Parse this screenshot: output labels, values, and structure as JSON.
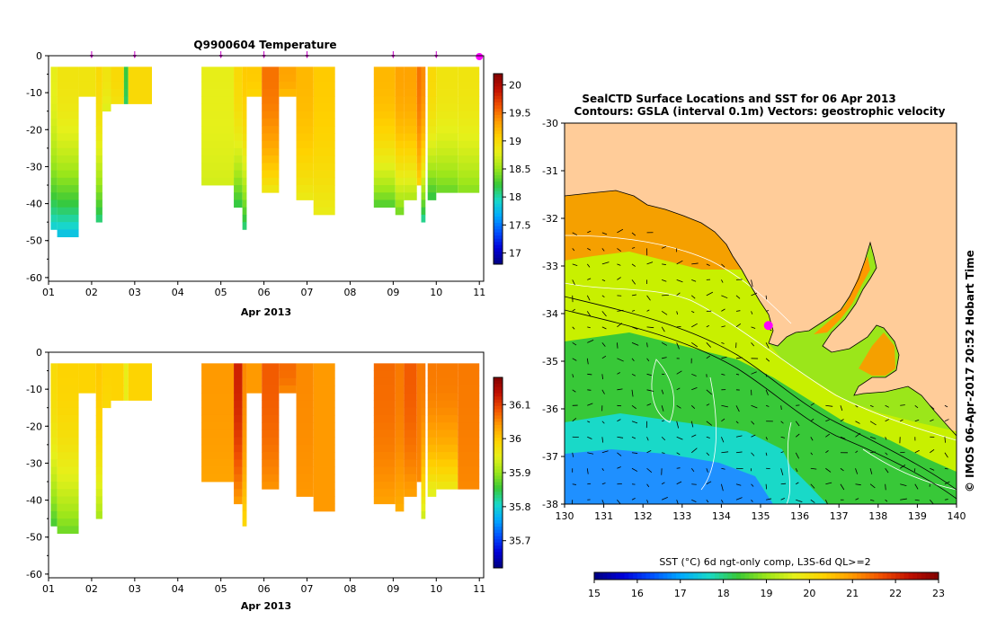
{
  "colors": {
    "land": "#ffcc99",
    "ramp": [
      "#000080",
      "#0000d8",
      "#0050ff",
      "#00a8ff",
      "#19d9c8",
      "#38c838",
      "#9be61a",
      "#e6f01a",
      "#ffd200",
      "#ff9a00",
      "#f05000",
      "#c01000",
      "#800000"
    ]
  },
  "chart_data": [
    {
      "type": "heatmap",
      "title": "Q9900604  Temperature",
      "xlabel": "Apr 2013",
      "ylabel": "",
      "x_ticks": [
        "01",
        "02",
        "03",
        "04",
        "05",
        "06",
        "07",
        "08",
        "09",
        "10",
        "11"
      ],
      "xlim": [
        1,
        11.1
      ],
      "y_ticks": [
        "0",
        "-10",
        "-20",
        "-30",
        "-40",
        "-50",
        "-60"
      ],
      "ylim": [
        -61,
        0
      ],
      "profile_markers_day": [
        2,
        3,
        5,
        6,
        7,
        9,
        10,
        11
      ],
      "colorbar": {
        "ticks": [
          "17",
          "17.5",
          "18",
          "18.5",
          "19",
          "19.5",
          "20"
        ],
        "range": [
          16.8,
          20.2
        ]
      },
      "casts": [
        {
          "x0": 1.05,
          "x1": 1.2,
          "depth": 47,
          "surface": 18.8,
          "bottom": 17.8
        },
        {
          "x0": 1.2,
          "x1": 1.7,
          "depth": 49,
          "surface": 18.9,
          "bottom": 17.7
        },
        {
          "x0": 1.7,
          "x1": 2.1,
          "depth": 11,
          "surface": 18.9,
          "bottom": 18.9
        },
        {
          "x0": 2.1,
          "x1": 2.25,
          "depth": 45,
          "surface": 19.0,
          "bottom": 18.0
        },
        {
          "x0": 2.25,
          "x1": 2.45,
          "depth": 15,
          "surface": 18.9,
          "bottom": 18.7
        },
        {
          "x0": 2.45,
          "x1": 2.75,
          "depth": 13,
          "surface": 19.0,
          "bottom": 18.9
        },
        {
          "x0": 2.75,
          "x1": 2.85,
          "depth": 13,
          "surface": 18.2,
          "bottom": 18.1
        },
        {
          "x0": 2.85,
          "x1": 3.4,
          "depth": 13,
          "surface": 19.0,
          "bottom": 19.0
        },
        {
          "x0": 4.55,
          "x1": 5.3,
          "depth": 35,
          "surface": 18.8,
          "bottom": 18.7
        },
        {
          "x0": 5.3,
          "x1": 5.5,
          "depth": 41,
          "surface": 19.0,
          "bottom": 18.1
        },
        {
          "x0": 5.5,
          "x1": 5.6,
          "depth": 47,
          "surface": 19.1,
          "bottom": 18.0
        },
        {
          "x0": 5.6,
          "x1": 5.95,
          "depth": 11,
          "surface": 19.1,
          "bottom": 19.0
        },
        {
          "x0": 5.95,
          "x1": 6.35,
          "depth": 37,
          "surface": 19.5,
          "bottom": 18.8
        },
        {
          "x0": 6.35,
          "x1": 6.75,
          "depth": 11,
          "surface": 19.3,
          "bottom": 19.1
        },
        {
          "x0": 6.75,
          "x1": 7.15,
          "depth": 39,
          "surface": 19.2,
          "bottom": 18.8
        },
        {
          "x0": 7.15,
          "x1": 7.65,
          "depth": 43,
          "surface": 19.1,
          "bottom": 18.8
        },
        {
          "x0": 8.55,
          "x1": 9.05,
          "depth": 41,
          "surface": 19.2,
          "bottom": 18.2
        },
        {
          "x0": 9.05,
          "x1": 9.25,
          "depth": 43,
          "surface": 19.3,
          "bottom": 18.3
        },
        {
          "x0": 9.25,
          "x1": 9.55,
          "depth": 39,
          "surface": 19.3,
          "bottom": 18.5
        },
        {
          "x0": 9.55,
          "x1": 9.65,
          "depth": 35,
          "surface": 19.5,
          "bottom": 19.0
        },
        {
          "x0": 9.65,
          "x1": 9.75,
          "depth": 45,
          "surface": 19.4,
          "bottom": 17.9
        },
        {
          "x0": 9.8,
          "x1": 10.0,
          "depth": 39,
          "surface": 19.0,
          "bottom": 18.1
        },
        {
          "x0": 10.0,
          "x1": 10.5,
          "depth": 37,
          "surface": 18.9,
          "bottom": 18.3
        },
        {
          "x0": 10.5,
          "x1": 11.0,
          "depth": 37,
          "surface": 18.9,
          "bottom": 18.4
        }
      ]
    },
    {
      "type": "heatmap",
      "title": "",
      "xlabel": "Apr 2013",
      "ylabel": "",
      "x_ticks": [
        "01",
        "02",
        "03",
        "04",
        "05",
        "06",
        "07",
        "08",
        "09",
        "10",
        "11"
      ],
      "xlim": [
        1,
        11.1
      ],
      "y_ticks": [
        "0",
        "-10",
        "-20",
        "-30",
        "-40",
        "-50",
        "-60"
      ],
      "ylim": [
        -61,
        0
      ],
      "colorbar": {
        "ticks": [
          "35.7",
          "35.8",
          "35.9",
          "36",
          "36.1"
        ],
        "range": [
          35.62,
          36.18
        ]
      },
      "casts": [
        {
          "x0": 1.05,
          "x1": 1.2,
          "depth": 47,
          "surface": 35.98,
          "bottom": 35.85
        },
        {
          "x0": 1.2,
          "x1": 1.7,
          "depth": 49,
          "surface": 35.99,
          "bottom": 35.87
        },
        {
          "x0": 1.7,
          "x1": 2.1,
          "depth": 11,
          "surface": 35.99,
          "bottom": 35.99
        },
        {
          "x0": 2.1,
          "x1": 2.25,
          "depth": 45,
          "surface": 36.0,
          "bottom": 35.9
        },
        {
          "x0": 2.25,
          "x1": 2.45,
          "depth": 15,
          "surface": 35.99,
          "bottom": 35.98
        },
        {
          "x0": 2.45,
          "x1": 2.75,
          "depth": 13,
          "surface": 35.99,
          "bottom": 35.99
        },
        {
          "x0": 2.75,
          "x1": 2.85,
          "depth": 13,
          "surface": 35.95,
          "bottom": 35.95
        },
        {
          "x0": 2.85,
          "x1": 3.4,
          "depth": 13,
          "surface": 35.99,
          "bottom": 35.99
        },
        {
          "x0": 4.55,
          "x1": 5.3,
          "depth": 35,
          "surface": 36.04,
          "bottom": 36.03
        },
        {
          "x0": 5.3,
          "x1": 5.5,
          "depth": 41,
          "surface": 36.12,
          "bottom": 36.03
        },
        {
          "x0": 5.5,
          "x1": 5.6,
          "depth": 47,
          "surface": 36.05,
          "bottom": 35.98
        },
        {
          "x0": 5.6,
          "x1": 5.95,
          "depth": 11,
          "surface": 36.04,
          "bottom": 36.04
        },
        {
          "x0": 5.95,
          "x1": 6.35,
          "depth": 37,
          "surface": 36.08,
          "bottom": 36.04
        },
        {
          "x0": 6.35,
          "x1": 6.75,
          "depth": 11,
          "surface": 36.07,
          "bottom": 36.04
        },
        {
          "x0": 6.75,
          "x1": 7.15,
          "depth": 39,
          "surface": 36.05,
          "bottom": 36.04
        },
        {
          "x0": 7.15,
          "x1": 7.65,
          "depth": 43,
          "surface": 36.04,
          "bottom": 36.04
        },
        {
          "x0": 8.55,
          "x1": 9.05,
          "depth": 41,
          "surface": 36.07,
          "bottom": 36.03
        },
        {
          "x0": 9.05,
          "x1": 9.25,
          "depth": 43,
          "surface": 36.06,
          "bottom": 36.02
        },
        {
          "x0": 9.25,
          "x1": 9.55,
          "depth": 39,
          "surface": 36.08,
          "bottom": 36.03
        },
        {
          "x0": 9.55,
          "x1": 9.65,
          "depth": 35,
          "surface": 36.06,
          "bottom": 36.05
        },
        {
          "x0": 9.65,
          "x1": 9.75,
          "depth": 45,
          "surface": 36.06,
          "bottom": 35.92
        },
        {
          "x0": 9.8,
          "x1": 10.0,
          "depth": 39,
          "surface": 36.06,
          "bottom": 35.93
        },
        {
          "x0": 10.0,
          "x1": 10.5,
          "depth": 37,
          "surface": 36.06,
          "bottom": 35.95
        },
        {
          "x0": 10.5,
          "x1": 11.0,
          "depth": 37,
          "surface": 36.06,
          "bottom": 36.05
        }
      ]
    },
    {
      "type": "heatmap",
      "title": "SealCTD Surface Locations and SST for 06 Apr 2013",
      "subtitle": "Contours: GSLA (interval 0.1m) Vectors: geostrophic velocity",
      "xlabel": "",
      "ylabel": "",
      "x_ticks": [
        "130",
        "131",
        "132",
        "133",
        "134",
        "135",
        "136",
        "137",
        "138",
        "139",
        "140"
      ],
      "xlim": [
        130,
        140
      ],
      "y_ticks": [
        "-30",
        "-31",
        "-32",
        "-33",
        "-34",
        "-35",
        "-36",
        "-37",
        "-38"
      ],
      "ylim": [
        -38,
        -30
      ],
      "colorbar": {
        "label": "SST (°C) 6d ngt-only comp, L3S-6d QL>=2",
        "ticks": [
          "15",
          "16",
          "17",
          "18",
          "19",
          "20",
          "21",
          "22",
          "23"
        ],
        "range": [
          15,
          23
        ]
      },
      "seal_location": {
        "lon": 135.2,
        "lat": -34.25
      },
      "side_text": "© IMOS 06-Apr-2017 20:52 Hobart Time"
    }
  ]
}
